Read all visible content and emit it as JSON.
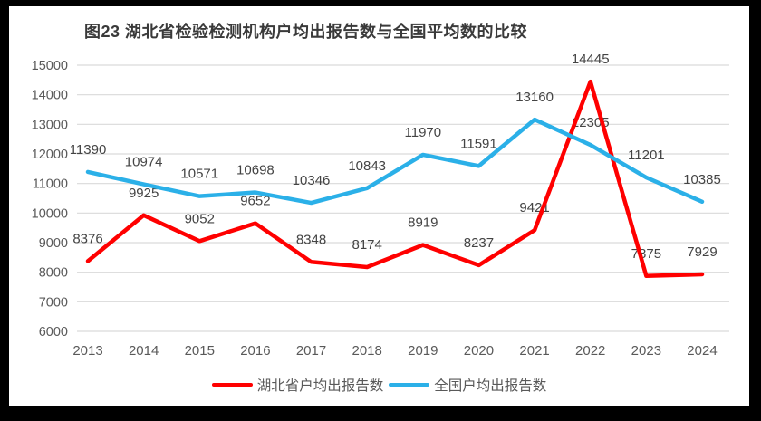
{
  "chart_data": {
    "type": "line",
    "title": "图23 湖北省检验检测机构户均出报告数与全国平均数的比较",
    "categories": [
      "2013",
      "2014",
      "2015",
      "2016",
      "2017",
      "2018",
      "2019",
      "2020",
      "2021",
      "2022",
      "2023",
      "2024"
    ],
    "series": [
      {
        "name": "湖北省户均出报告数",
        "color": "#FF0000",
        "values": [
          8376,
          9925,
          9052,
          9652,
          8348,
          8174,
          8919,
          8237,
          9421,
          14445,
          7875,
          7929
        ]
      },
      {
        "name": "全国户均出报告数",
        "color": "#2BB0E8",
        "values": [
          11390,
          10974,
          10571,
          10698,
          10346,
          10843,
          11970,
          11591,
          13160,
          12305,
          11201,
          10385
        ]
      }
    ],
    "xlabel": "",
    "ylabel": "",
    "ylim": [
      6000,
      15000
    ],
    "ytick_step": 1000,
    "grid": "horizontal-only",
    "legend_position": "bottom",
    "data_labels": true
  },
  "styles": {
    "frame_color": "#000000",
    "background_color": "#FFFFFF",
    "grid_color": "#D9D9D9",
    "axis_text_color": "#595959",
    "data_label_color": "#444444",
    "title_color": "#3A3A3A"
  }
}
